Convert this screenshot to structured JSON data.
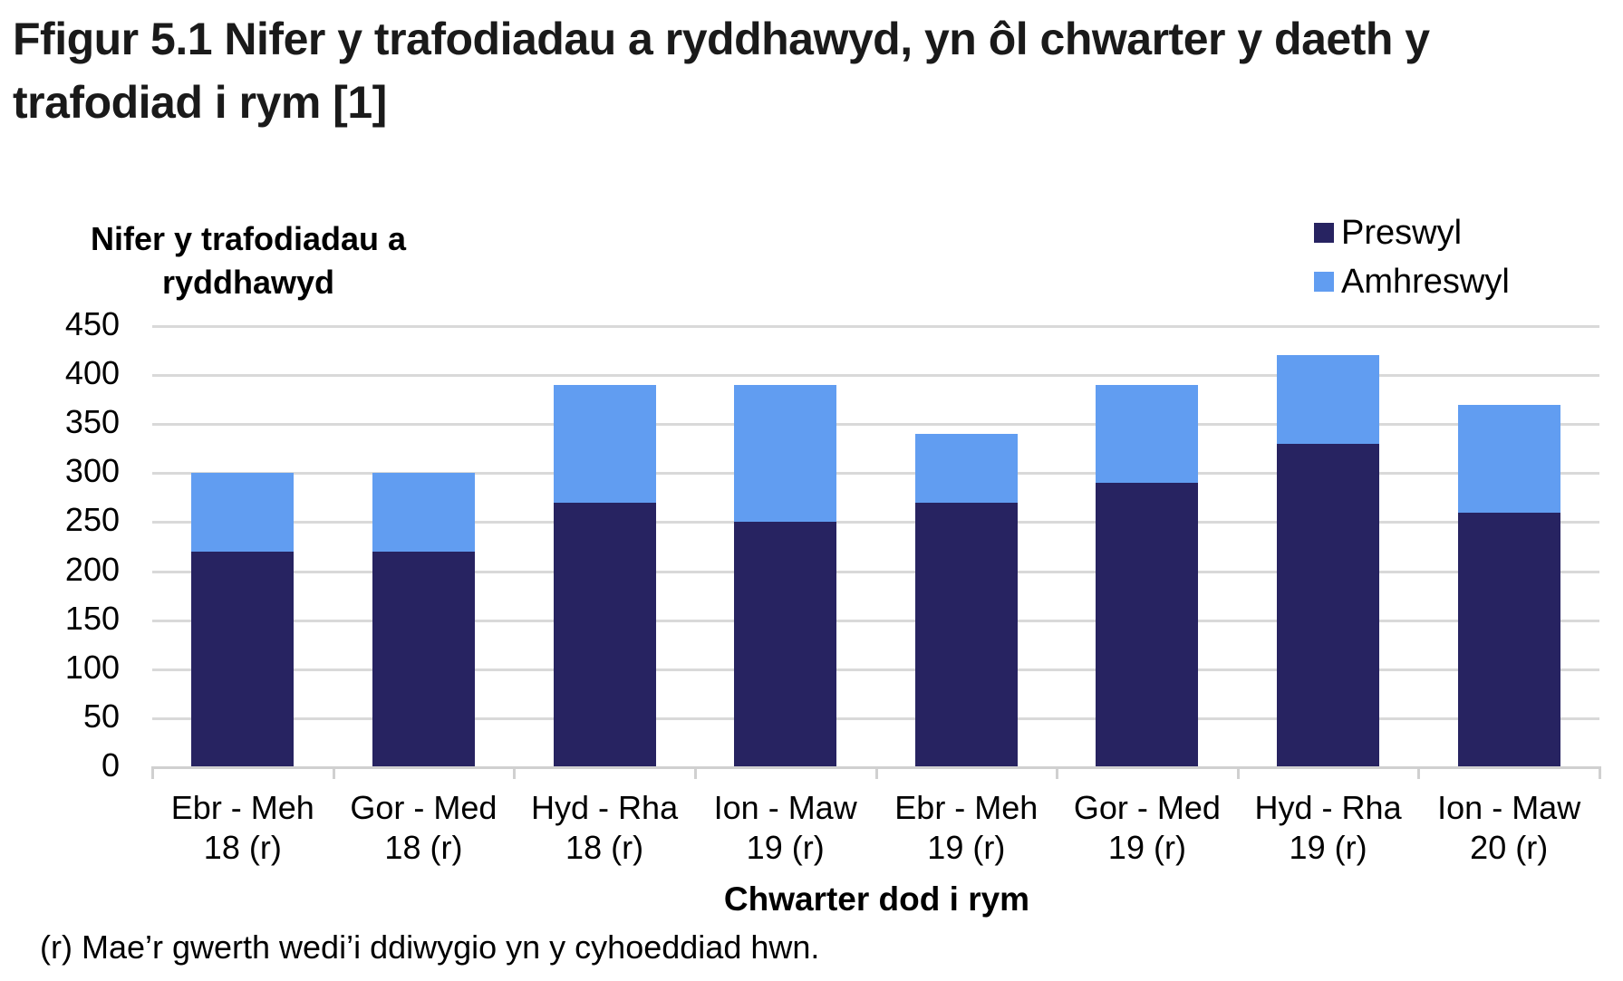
{
  "title": "Ffigur 5.1  Nifer y trafodiadau a ryddhawyd, yn ôl chwarter y daeth y trafodiad i rym [1]",
  "y_axis_title": "Nifer y trafodiadau a ryddhawyd",
  "x_axis_title": "Chwarter dod i rym",
  "footnote": "(r) Mae’r gwerth wedi’i ddiwygio yn y cyhoeddiad hwn.",
  "legend": [
    {
      "label": "Preswyl",
      "color": "#272361"
    },
    {
      "label": "Amhreswyl",
      "color": "#619df1"
    }
  ],
  "y_ticks": [
    "0",
    "50",
    "100",
    "150",
    "200",
    "250",
    "300",
    "350",
    "400",
    "450"
  ],
  "x_labels": [
    {
      "line1": "Ebr - Meh",
      "line2": "18 (r)"
    },
    {
      "line1": "Gor - Med",
      "line2": "18 (r)"
    },
    {
      "line1": "Hyd - Rha",
      "line2": "18 (r)"
    },
    {
      "line1": "Ion - Maw",
      "line2": "19 (r)"
    },
    {
      "line1": "Ebr - Meh",
      "line2": "19 (r)"
    },
    {
      "line1": "Gor - Med",
      "line2": "19 (r)"
    },
    {
      "line1": "Hyd - Rha",
      "line2": "19 (r)"
    },
    {
      "line1": "Ion - Maw",
      "line2": "20 (r)"
    }
  ],
  "chart_data": {
    "type": "bar",
    "stacked": true,
    "title": "Ffigur 5.1  Nifer y trafodiadau a ryddhawyd, yn ôl chwarter y daeth y trafodiad i rym [1]",
    "xlabel": "Chwarter dod i rym",
    "ylabel": "Nifer y trafodiadau a ryddhawyd",
    "ylim": [
      0,
      450
    ],
    "yticks": [
      0,
      50,
      100,
      150,
      200,
      250,
      300,
      350,
      400,
      450
    ],
    "grid": true,
    "legend_position": "top-right",
    "categories": [
      "Ebr - Meh 18 (r)",
      "Gor - Med 18 (r)",
      "Hyd - Rha 18 (r)",
      "Ion - Maw 19 (r)",
      "Ebr - Meh 19 (r)",
      "Gor - Med 19 (r)",
      "Hyd - Rha 19 (r)",
      "Ion - Maw 20 (r)"
    ],
    "series": [
      {
        "name": "Preswyl",
        "color": "#272361",
        "values": [
          220,
          220,
          270,
          250,
          270,
          290,
          330,
          260
        ]
      },
      {
        "name": "Amhreswyl",
        "color": "#619df1",
        "values": [
          80,
          80,
          120,
          140,
          70,
          100,
          90,
          110
        ]
      }
    ],
    "annotations": [
      "(r) Mae’r gwerth wedi’i ddiwygio yn y cyhoeddiad hwn."
    ]
  }
}
